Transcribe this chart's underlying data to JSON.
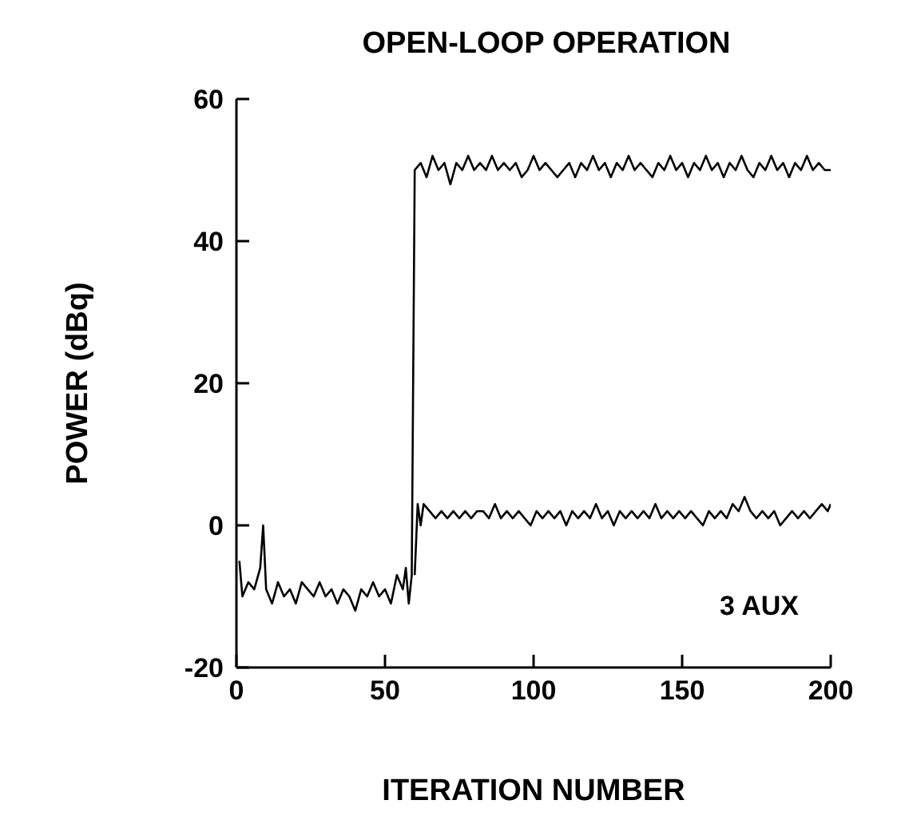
{
  "chart_data": {
    "type": "line",
    "title": "OPEN-LOOP OPERATION",
    "xlabel": "ITERATION NUMBER",
    "ylabel": "POWER (dBq)",
    "xlim": [
      0,
      200
    ],
    "ylim": [
      -20,
      60
    ],
    "xticks": [
      0,
      50,
      100,
      150,
      200
    ],
    "yticks": [
      -20,
      0,
      20,
      40,
      60
    ],
    "marker": "none",
    "line_style": "solid",
    "annotations": [
      "3 AUX"
    ],
    "series": [
      {
        "color": "#000000",
        "x": [
          1,
          2,
          4,
          6,
          8,
          9,
          10,
          12,
          14,
          16,
          18,
          20,
          22,
          24,
          26,
          28,
          30,
          32,
          34,
          36,
          38,
          40,
          42,
          44,
          46,
          48,
          50,
          52,
          54,
          56,
          57,
          58,
          59,
          60,
          62,
          64,
          66,
          68,
          70,
          72,
          74,
          76,
          78,
          80,
          82,
          84,
          86,
          88,
          90,
          92,
          94,
          96,
          98,
          100,
          102,
          104,
          106,
          108,
          110,
          112,
          114,
          116,
          118,
          120,
          122,
          124,
          126,
          128,
          130,
          132,
          134,
          136,
          138,
          140,
          142,
          144,
          146,
          148,
          150,
          152,
          154,
          156,
          158,
          160,
          162,
          164,
          166,
          168,
          170,
          172,
          174,
          176,
          178,
          180,
          182,
          184,
          186,
          188,
          190,
          192,
          194,
          196,
          198,
          200
        ],
        "values": [
          -5,
          -10,
          -8,
          -9,
          -6,
          0,
          -9,
          -11,
          -8,
          -10,
          -9,
          -11,
          -8,
          -9,
          -10,
          -8,
          -10,
          -9,
          -11,
          -9,
          -10,
          -12,
          -9,
          -10,
          -8,
          -10,
          -9,
          -11,
          -7,
          -9,
          -6,
          -11,
          -7,
          50,
          51,
          49,
          52,
          50,
          51,
          48,
          51,
          50,
          52,
          50,
          51,
          50,
          52,
          50,
          51,
          50,
          51,
          49,
          50,
          52,
          50,
          51,
          50,
          49,
          50,
          51,
          49,
          51,
          50,
          52,
          50,
          51,
          49,
          51,
          50,
          52,
          50,
          51,
          50,
          49,
          51,
          50,
          52,
          50,
          51,
          49,
          51,
          50,
          52,
          50,
          51,
          49,
          51,
          50,
          52,
          50,
          49,
          51,
          50,
          52,
          50,
          51,
          49,
          51,
          50,
          52,
          50,
          51,
          50,
          50
        ]
      },
      {
        "color": "#000000",
        "x": [
          60,
          61,
          62,
          63,
          65,
          67,
          69,
          71,
          73,
          75,
          77,
          79,
          81,
          83,
          85,
          87,
          89,
          91,
          93,
          95,
          97,
          99,
          101,
          103,
          105,
          107,
          109,
          111,
          113,
          115,
          117,
          119,
          121,
          123,
          125,
          127,
          129,
          131,
          133,
          135,
          137,
          139,
          141,
          143,
          145,
          147,
          149,
          151,
          153,
          155,
          157,
          159,
          161,
          163,
          165,
          167,
          169,
          171,
          173,
          175,
          177,
          179,
          181,
          183,
          185,
          187,
          189,
          191,
          193,
          195,
          197,
          199,
          200
        ],
        "values": [
          -7,
          3,
          0,
          3,
          2,
          1,
          2,
          1,
          2,
          1,
          2,
          1,
          2,
          2,
          1,
          3,
          1,
          2,
          1,
          2,
          1,
          0,
          2,
          1,
          2,
          1,
          2,
          0,
          2,
          1,
          2,
          1,
          3,
          1,
          2,
          0,
          2,
          1,
          2,
          1,
          2,
          1,
          3,
          1,
          2,
          1,
          2,
          1,
          2,
          1,
          0,
          2,
          1,
          2,
          1,
          3,
          2,
          4,
          2,
          1,
          2,
          1,
          2,
          0,
          1,
          2,
          1,
          2,
          1,
          2,
          3,
          2,
          3
        ]
      }
    ]
  }
}
